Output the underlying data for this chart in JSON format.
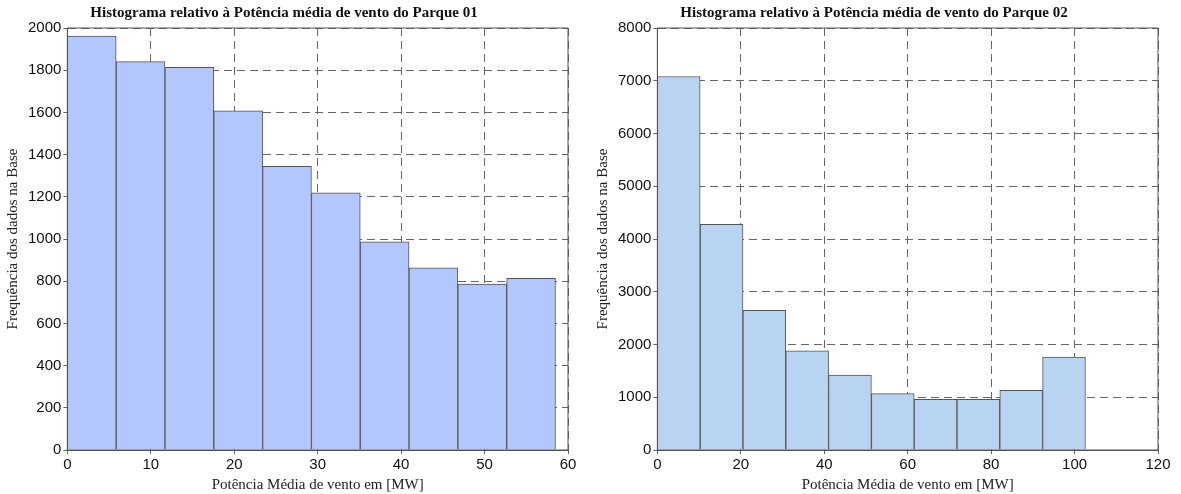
{
  "chart_data": [
    {
      "type": "histogram",
      "title": "Histograma relativo à Potência média de vento do Parque 01",
      "xlabel": "Potência Média de vento em [MW]",
      "ylabel": "Frequência dos dados na Base",
      "color": "#b3c6fd",
      "bins": [
        0,
        5.85,
        11.7,
        17.55,
        23.4,
        29.25,
        35.1,
        40.95,
        46.8,
        52.65,
        58.5
      ],
      "values": [
        1962,
        1841,
        1814,
        1608,
        1345,
        1219,
        987,
        863,
        786,
        814
      ],
      "xlim": [
        0,
        60
      ],
      "xticks": [
        0,
        10,
        20,
        30,
        40,
        50,
        60
      ],
      "ylim": [
        0,
        2000
      ],
      "yticks": [
        0,
        200,
        400,
        600,
        800,
        1000,
        1200,
        1400,
        1600,
        1800,
        2000
      ],
      "grid": true
    },
    {
      "type": "histogram",
      "title": "Histograma relativo à Potência média de vento do Parque 02",
      "xlabel": "Potência Média de vento em [MW]",
      "ylabel": "Frequência dos dados na Base",
      "color": "#b9d3f2",
      "bins": [
        0,
        10.26,
        20.52,
        30.78,
        41.04,
        51.3,
        61.56,
        71.82,
        82.08,
        92.34,
        102.6
      ],
      "values": [
        7080,
        4280,
        2650,
        1880,
        1420,
        1070,
        960,
        960,
        1130,
        1760
      ],
      "xlim": [
        0,
        120
      ],
      "xticks": [
        0,
        20,
        40,
        60,
        80,
        100,
        120
      ],
      "ylim": [
        0,
        8000
      ],
      "yticks": [
        0,
        1000,
        2000,
        3000,
        4000,
        5000,
        6000,
        7000,
        8000
      ],
      "grid": true
    }
  ]
}
